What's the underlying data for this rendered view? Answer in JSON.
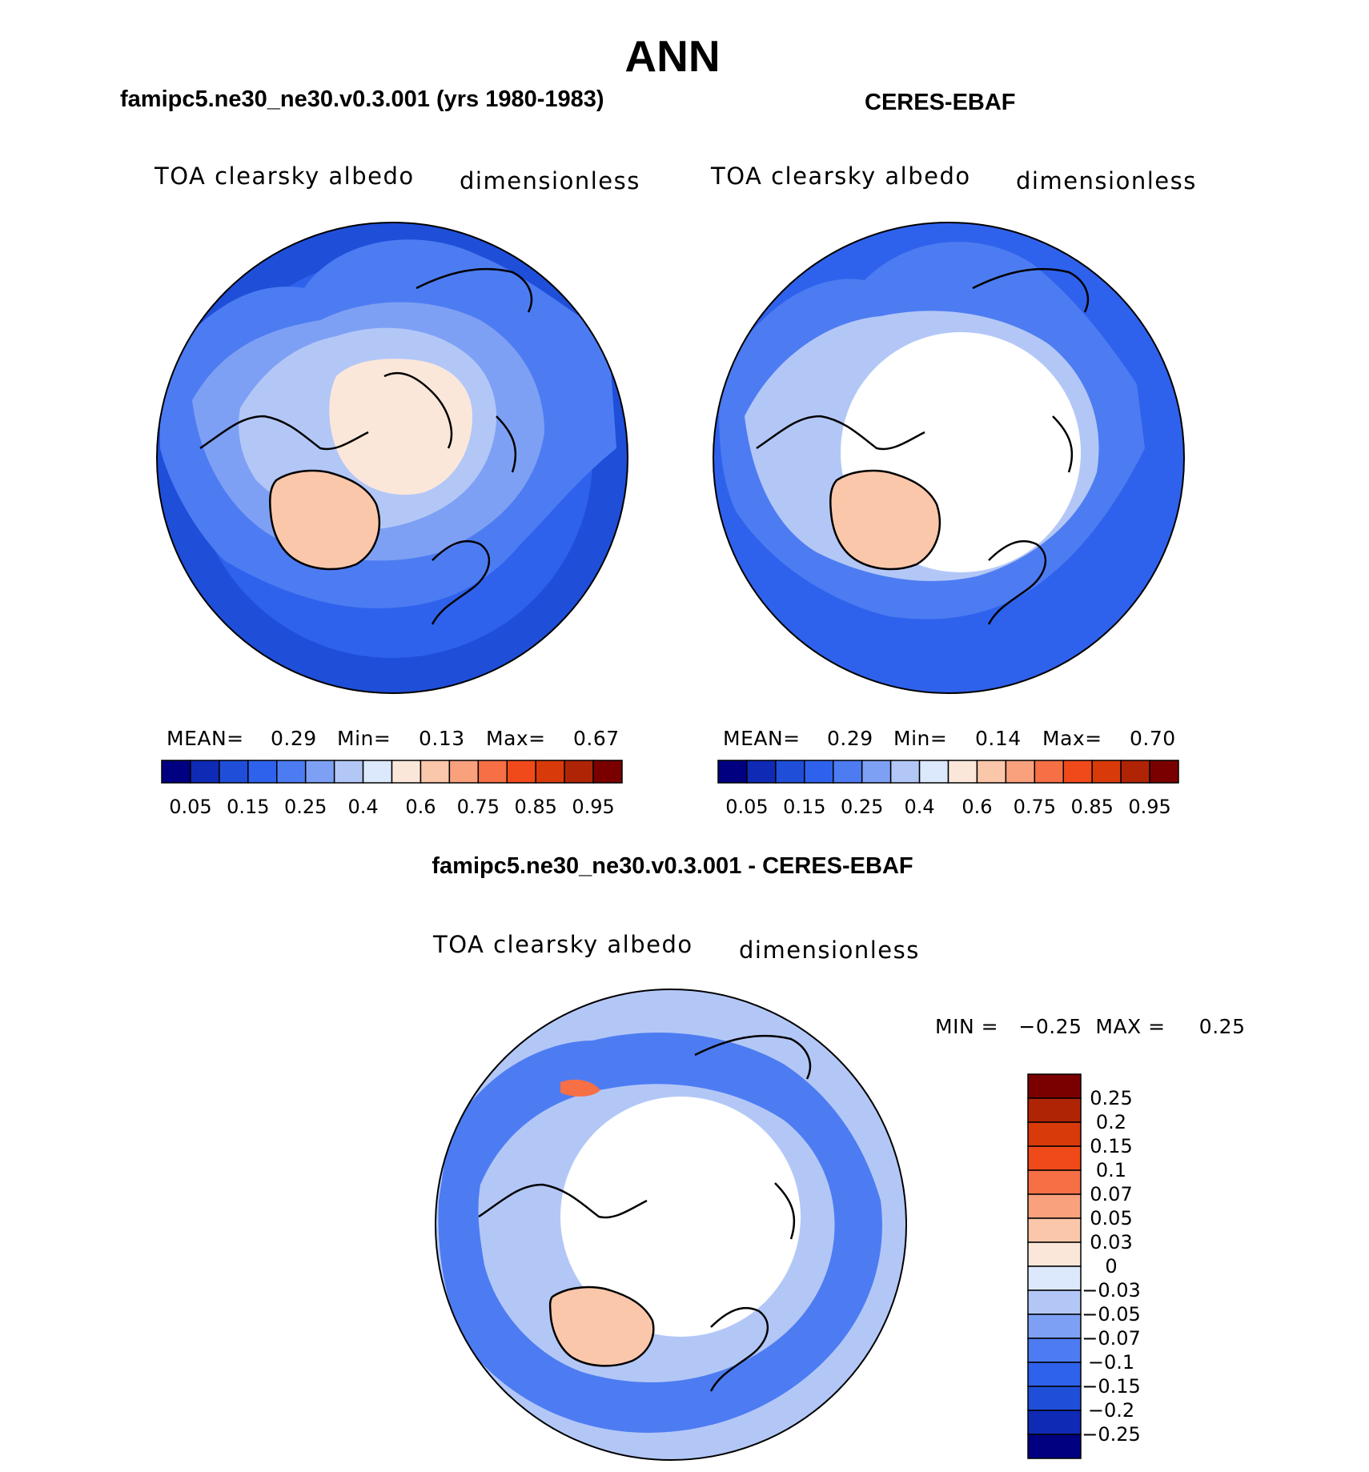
{
  "title": "ANN",
  "panels": {
    "model": {
      "title": "famipc5.ne30_ne30.v0.3.001 (yrs 1980-1983)",
      "variable": "TOA clearsky albedo",
      "units": "dimensionless",
      "stats": {
        "mean_label": "MEAN=",
        "mean": "0.29",
        "min_label": "Min=",
        "min": "0.13",
        "max_label": "Max=",
        "max": "0.67"
      }
    },
    "obs": {
      "title": "CERES-EBAF",
      "variable": "TOA clearsky albedo",
      "units": "dimensionless",
      "stats": {
        "mean_label": "MEAN=",
        "mean": "0.29",
        "min_label": "Min=",
        "min": "0.14",
        "max_label": "Max=",
        "max": "0.70"
      }
    },
    "diff": {
      "title": "famipc5.ne30_ne30.v0.3.001 - CERES-EBAF",
      "variable": "TOA clearsky albedo",
      "units": "dimensionless",
      "minmax_text": "MIN =   −0.25  MAX =     0.25"
    }
  },
  "colorbars": {
    "abs_colors": [
      "#000080",
      "#0f2bb5",
      "#1f4fd9",
      "#2f62ec",
      "#4d7cf2",
      "#7ea0f4",
      "#b3c7f7",
      "#dce8fb",
      "#fbe7da",
      "#fbc7aa",
      "#f9a17d",
      "#f66f45",
      "#f04a1a",
      "#d93a0a",
      "#b02406",
      "#7a0000"
    ],
    "abs_labels": [
      "0.05",
      "0.15",
      "0.25",
      "0.4",
      "0.6",
      "0.75",
      "0.85",
      "0.95"
    ],
    "diff_colors": [
      "#7a0000",
      "#b02406",
      "#d93a0a",
      "#f04a1a",
      "#f66f45",
      "#f9a17d",
      "#fbc7aa",
      "#fbe7da",
      "#dce8fb",
      "#b3c7f7",
      "#7ea0f4",
      "#4d7cf2",
      "#2f62ec",
      "#1f4fd9",
      "#0f2bb5",
      "#000080"
    ],
    "diff_labels": [
      "0.25",
      "0.2",
      "0.15",
      "0.1",
      "0.07",
      "0.05",
      "0.03",
      "0",
      "−0.03",
      "−0.05",
      "−0.07",
      "−0.1",
      "−0.15",
      "−0.2",
      "−0.25"
    ]
  },
  "map_colors": {
    "ocean_deep": "#1f4fd9",
    "ocean_mid": "#2f62ec",
    "land_mid": "#4d7cf2",
    "land_light": "#7ea0f4",
    "ice_edge": "#b3c7f7",
    "sea_ice_model": "#fbe7da",
    "greenland_model": "#fbc7aa",
    "missing": "#ffffff",
    "diff_red": "#f66f45"
  }
}
